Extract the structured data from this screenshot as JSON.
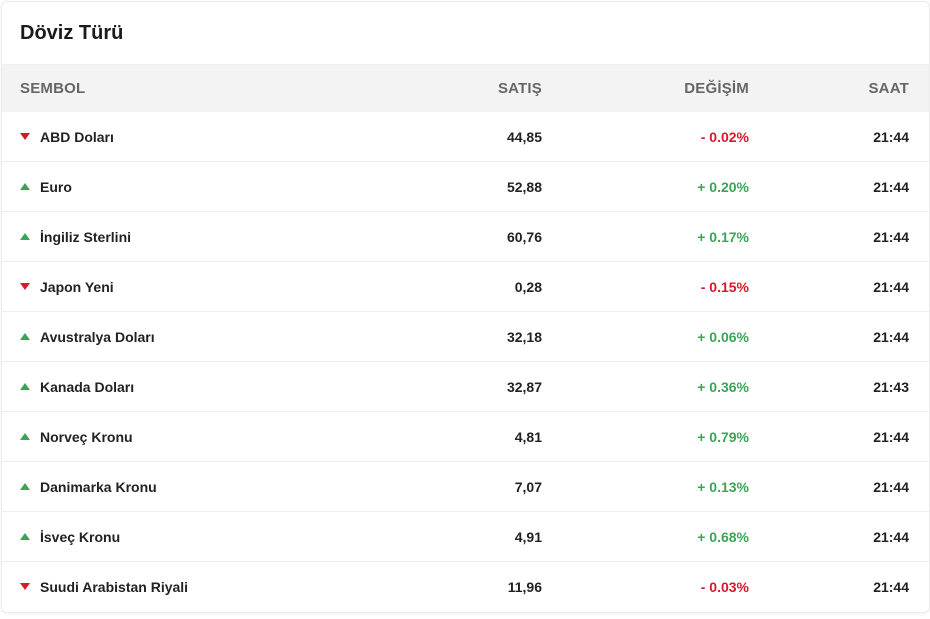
{
  "title": "Döviz Türü",
  "colors": {
    "up": "#3aa655",
    "down": "#d7192a"
  },
  "headers": {
    "symbol": "SEMBOL",
    "sell": "SATIŞ",
    "change": "DEĞİŞİM",
    "time": "SAAT"
  },
  "rows": [
    {
      "name": "ABD Doları",
      "sell": "44,85",
      "change": "- 0.02%",
      "time": "21:44",
      "direction": "down",
      "icon": "arrow-down-icon"
    },
    {
      "name": "Euro",
      "sell": "52,88",
      "change": "+ 0.20%",
      "time": "21:44",
      "direction": "up",
      "icon": "arrow-up-icon"
    },
    {
      "name": "İngiliz Sterlini",
      "sell": "60,76",
      "change": "+ 0.17%",
      "time": "21:44",
      "direction": "up",
      "icon": "arrow-up-icon"
    },
    {
      "name": "Japon Yeni",
      "sell": "0,28",
      "change": "- 0.15%",
      "time": "21:44",
      "direction": "down",
      "icon": "arrow-down-icon"
    },
    {
      "name": "Avustralya Doları",
      "sell": "32,18",
      "change": "+ 0.06%",
      "time": "21:44",
      "direction": "up",
      "icon": "arrow-up-icon"
    },
    {
      "name": "Kanada Doları",
      "sell": "32,87",
      "change": "+ 0.36%",
      "time": "21:43",
      "direction": "up",
      "icon": "arrow-up-icon"
    },
    {
      "name": "Norveç Kronu",
      "sell": "4,81",
      "change": "+ 0.79%",
      "time": "21:44",
      "direction": "up",
      "icon": "arrow-up-icon"
    },
    {
      "name": "Danimarka Kronu",
      "sell": "7,07",
      "change": "+ 0.13%",
      "time": "21:44",
      "direction": "up",
      "icon": "arrow-up-icon"
    },
    {
      "name": "İsveç Kronu",
      "sell": "4,91",
      "change": "+ 0.68%",
      "time": "21:44",
      "direction": "up",
      "icon": "arrow-up-icon"
    },
    {
      "name": "Suudi Arabistan Riyali",
      "sell": "11,96",
      "change": "- 0.03%",
      "time": "21:44",
      "direction": "down",
      "icon": "arrow-down-icon"
    }
  ]
}
